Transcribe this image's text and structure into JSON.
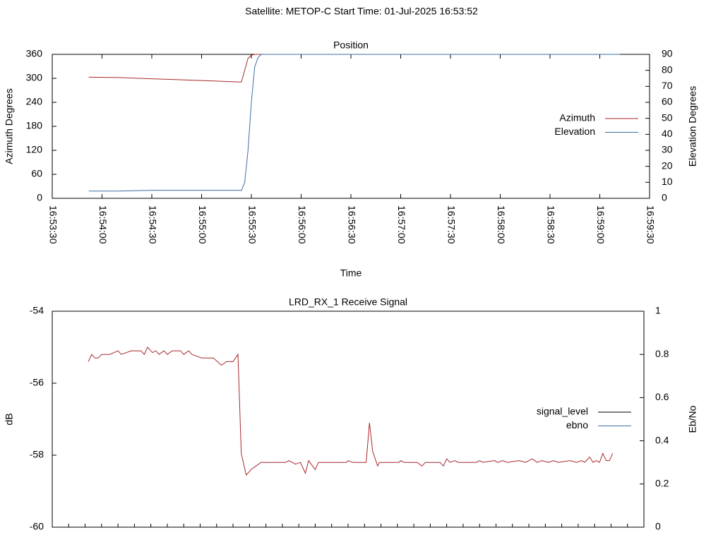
{
  "title": "Satellite: METOP-C    Start Time: 01-Jul-2025 16:53:52",
  "chart_data": [
    {
      "type": "line",
      "title": "Position",
      "xlabel": "Time",
      "ylabel": "Azimuth Degrees",
      "y2label": "Elevation Degrees",
      "x": [
        "16:53:52",
        "16:54:10",
        "16:54:30",
        "16:54:50",
        "16:55:10",
        "16:55:22",
        "16:55:24",
        "16:55:26",
        "16:55:28",
        "16:55:30",
        "16:55:32",
        "16:55:34",
        "16:55:36",
        "16:55:50",
        "16:56:10",
        "16:56:30",
        "16:56:50",
        "16:57:10",
        "16:57:30",
        "16:57:50",
        "16:58:10",
        "16:58:30",
        "16:58:50",
        "16:59:12"
      ],
      "xlim": [
        "16:53:30",
        "16:59:30"
      ],
      "xticks": [
        "16:53:30",
        "16:54:00",
        "16:54:30",
        "16:55:00",
        "16:55:30",
        "16:56:00",
        "16:56:30",
        "16:57:00",
        "16:57:30",
        "16:58:00",
        "16:58:30",
        "16:59:00",
        "16:59:30"
      ],
      "ylim": [
        0,
        360
      ],
      "yticks": [
        0,
        60,
        120,
        180,
        240,
        300,
        360
      ],
      "y2lim": [
        0,
        90
      ],
      "y2ticks": [
        0,
        10,
        20,
        30,
        40,
        50,
        60,
        70,
        80,
        90
      ],
      "legend": "right",
      "series": [
        {
          "name": "Azimuth",
          "color": "#a8282b",
          "values": [
            303,
            302,
            299,
            296,
            293,
            291,
            291,
            320,
            350,
            358,
            360,
            360,
            360,
            360,
            360,
            360,
            360,
            360,
            360,
            360,
            360,
            360,
            360,
            360
          ]
        },
        {
          "name": "Elevation",
          "color": "#3a6ea5",
          "axis": "y2",
          "values": [
            4.5,
            4.5,
            5,
            5,
            5,
            5,
            4.8,
            10,
            30,
            60,
            82,
            88,
            90,
            90,
            90,
            90,
            90,
            90,
            90,
            90,
            90,
            90,
            90,
            90
          ]
        }
      ]
    },
    {
      "type": "line",
      "title": "LRD_RX_1 Receive Signal",
      "ylabel": "dB",
      "y2label": "Eb/No",
      "x": [
        "16:53:52",
        "16:53:54",
        "16:53:56",
        "16:53:58",
        "16:54:00",
        "16:54:05",
        "16:54:10",
        "16:54:12",
        "16:54:18",
        "16:54:24",
        "16:54:26",
        "16:54:28",
        "16:54:31",
        "16:54:33",
        "16:54:35",
        "16:54:38",
        "16:54:40",
        "16:54:43",
        "16:54:48",
        "16:54:50",
        "16:54:53",
        "16:54:55",
        "16:55:01",
        "16:55:08",
        "16:55:13",
        "16:55:16",
        "16:55:20",
        "16:55:23",
        "16:55:25",
        "16:55:28",
        "16:55:31",
        "16:55:34",
        "16:55:37",
        "16:55:52",
        "16:55:54",
        "16:55:58",
        "16:56:01",
        "16:56:04",
        "16:56:06",
        "16:56:10",
        "16:56:12",
        "16:56:29",
        "16:56:30",
        "16:56:33",
        "16:56:41",
        "16:56:43",
        "16:56:45",
        "16:56:48",
        "16:56:49",
        "16:57:01",
        "16:57:02",
        "16:57:04",
        "16:57:12",
        "16:57:15",
        "16:57:17",
        "16:57:26",
        "16:57:28",
        "16:57:30",
        "16:57:32",
        "16:57:35",
        "16:57:37",
        "16:57:48",
        "16:57:50",
        "16:57:52",
        "16:57:59",
        "16:58:01",
        "16:58:04",
        "16:58:07",
        "16:58:14",
        "16:58:18",
        "16:58:22",
        "16:58:25",
        "16:58:28",
        "16:58:32",
        "16:58:35",
        "16:58:38",
        "16:58:45",
        "16:58:49",
        "16:58:52",
        "16:58:54",
        "16:58:57",
        "16:58:59",
        "16:59:01",
        "16:59:03",
        "16:59:05",
        "16:59:07",
        "16:59:09",
        "16:59:11"
      ],
      "xlim": [
        "16:53:30",
        "16:59:30"
      ],
      "ylim": [
        -60,
        -54
      ],
      "yticks": [
        -60,
        -58,
        -56,
        -54
      ],
      "y2lim": [
        0,
        1
      ],
      "y2ticks": [
        0,
        0.2,
        0.4,
        0.6,
        0.8,
        1
      ],
      "legend": "right",
      "series": [
        {
          "name": "signal_level",
          "color": "#000000",
          "line_color": "#a8282b",
          "values": [
            -55.4,
            -55.2,
            -55.3,
            -55.3,
            -55.2,
            -55.2,
            -55.1,
            -55.2,
            -55.1,
            -55.1,
            -55.2,
            -55,
            -55.15,
            -55.1,
            -55.2,
            -55.1,
            -55.2,
            -55.1,
            -55.1,
            -55.2,
            -55.1,
            -55.2,
            -55.3,
            -55.3,
            -55.5,
            -55.4,
            -55.4,
            -55.2,
            -57.95,
            -58.55,
            -58.4,
            -58.3,
            -58.2,
            -58.2,
            -58.15,
            -58.25,
            -58.2,
            -58.5,
            -58.15,
            -58.4,
            -58.2,
            -58.2,
            -58.15,
            -58.2,
            -58.2,
            -57.1,
            -57.9,
            -58.3,
            -58.2,
            -58.2,
            -58.15,
            -58.2,
            -58.2,
            -58.3,
            -58.2,
            -58.2,
            -58.3,
            -58.1,
            -58.2,
            -58.15,
            -58.2,
            -58.2,
            -58.15,
            -58.2,
            -58.15,
            -58.2,
            -58.15,
            -58.2,
            -58.15,
            -58.2,
            -58.1,
            -58.2,
            -58.15,
            -58.2,
            -58.15,
            -58.2,
            -58.15,
            -58.2,
            -58.15,
            -58.2,
            -58.05,
            -58.2,
            -58.15,
            -58.2,
            -57.95,
            -58.15,
            -58.15,
            -57.95
          ]
        },
        {
          "name": "ebno",
          "color": "#3a6ea5",
          "axis": "y2",
          "values": [
            null,
            null,
            null,
            null,
            null,
            null,
            null,
            null,
            null,
            null,
            null,
            null,
            null,
            null,
            null,
            null,
            null,
            null,
            null,
            null,
            null,
            null,
            null,
            null,
            null,
            null,
            null,
            null,
            null,
            null,
            null,
            null,
            null,
            null,
            null,
            null,
            null,
            null,
            null,
            null,
            null,
            null,
            null,
            null,
            null,
            null,
            null,
            null,
            null,
            null,
            null,
            null,
            null,
            null,
            null,
            null,
            null,
            null,
            null,
            null,
            null,
            null,
            null,
            null,
            null,
            null,
            null,
            null,
            null,
            null,
            null,
            null,
            null,
            null,
            null,
            null,
            null,
            null,
            null,
            null,
            null,
            null,
            null,
            null,
            null,
            null,
            null,
            null
          ]
        }
      ]
    }
  ]
}
